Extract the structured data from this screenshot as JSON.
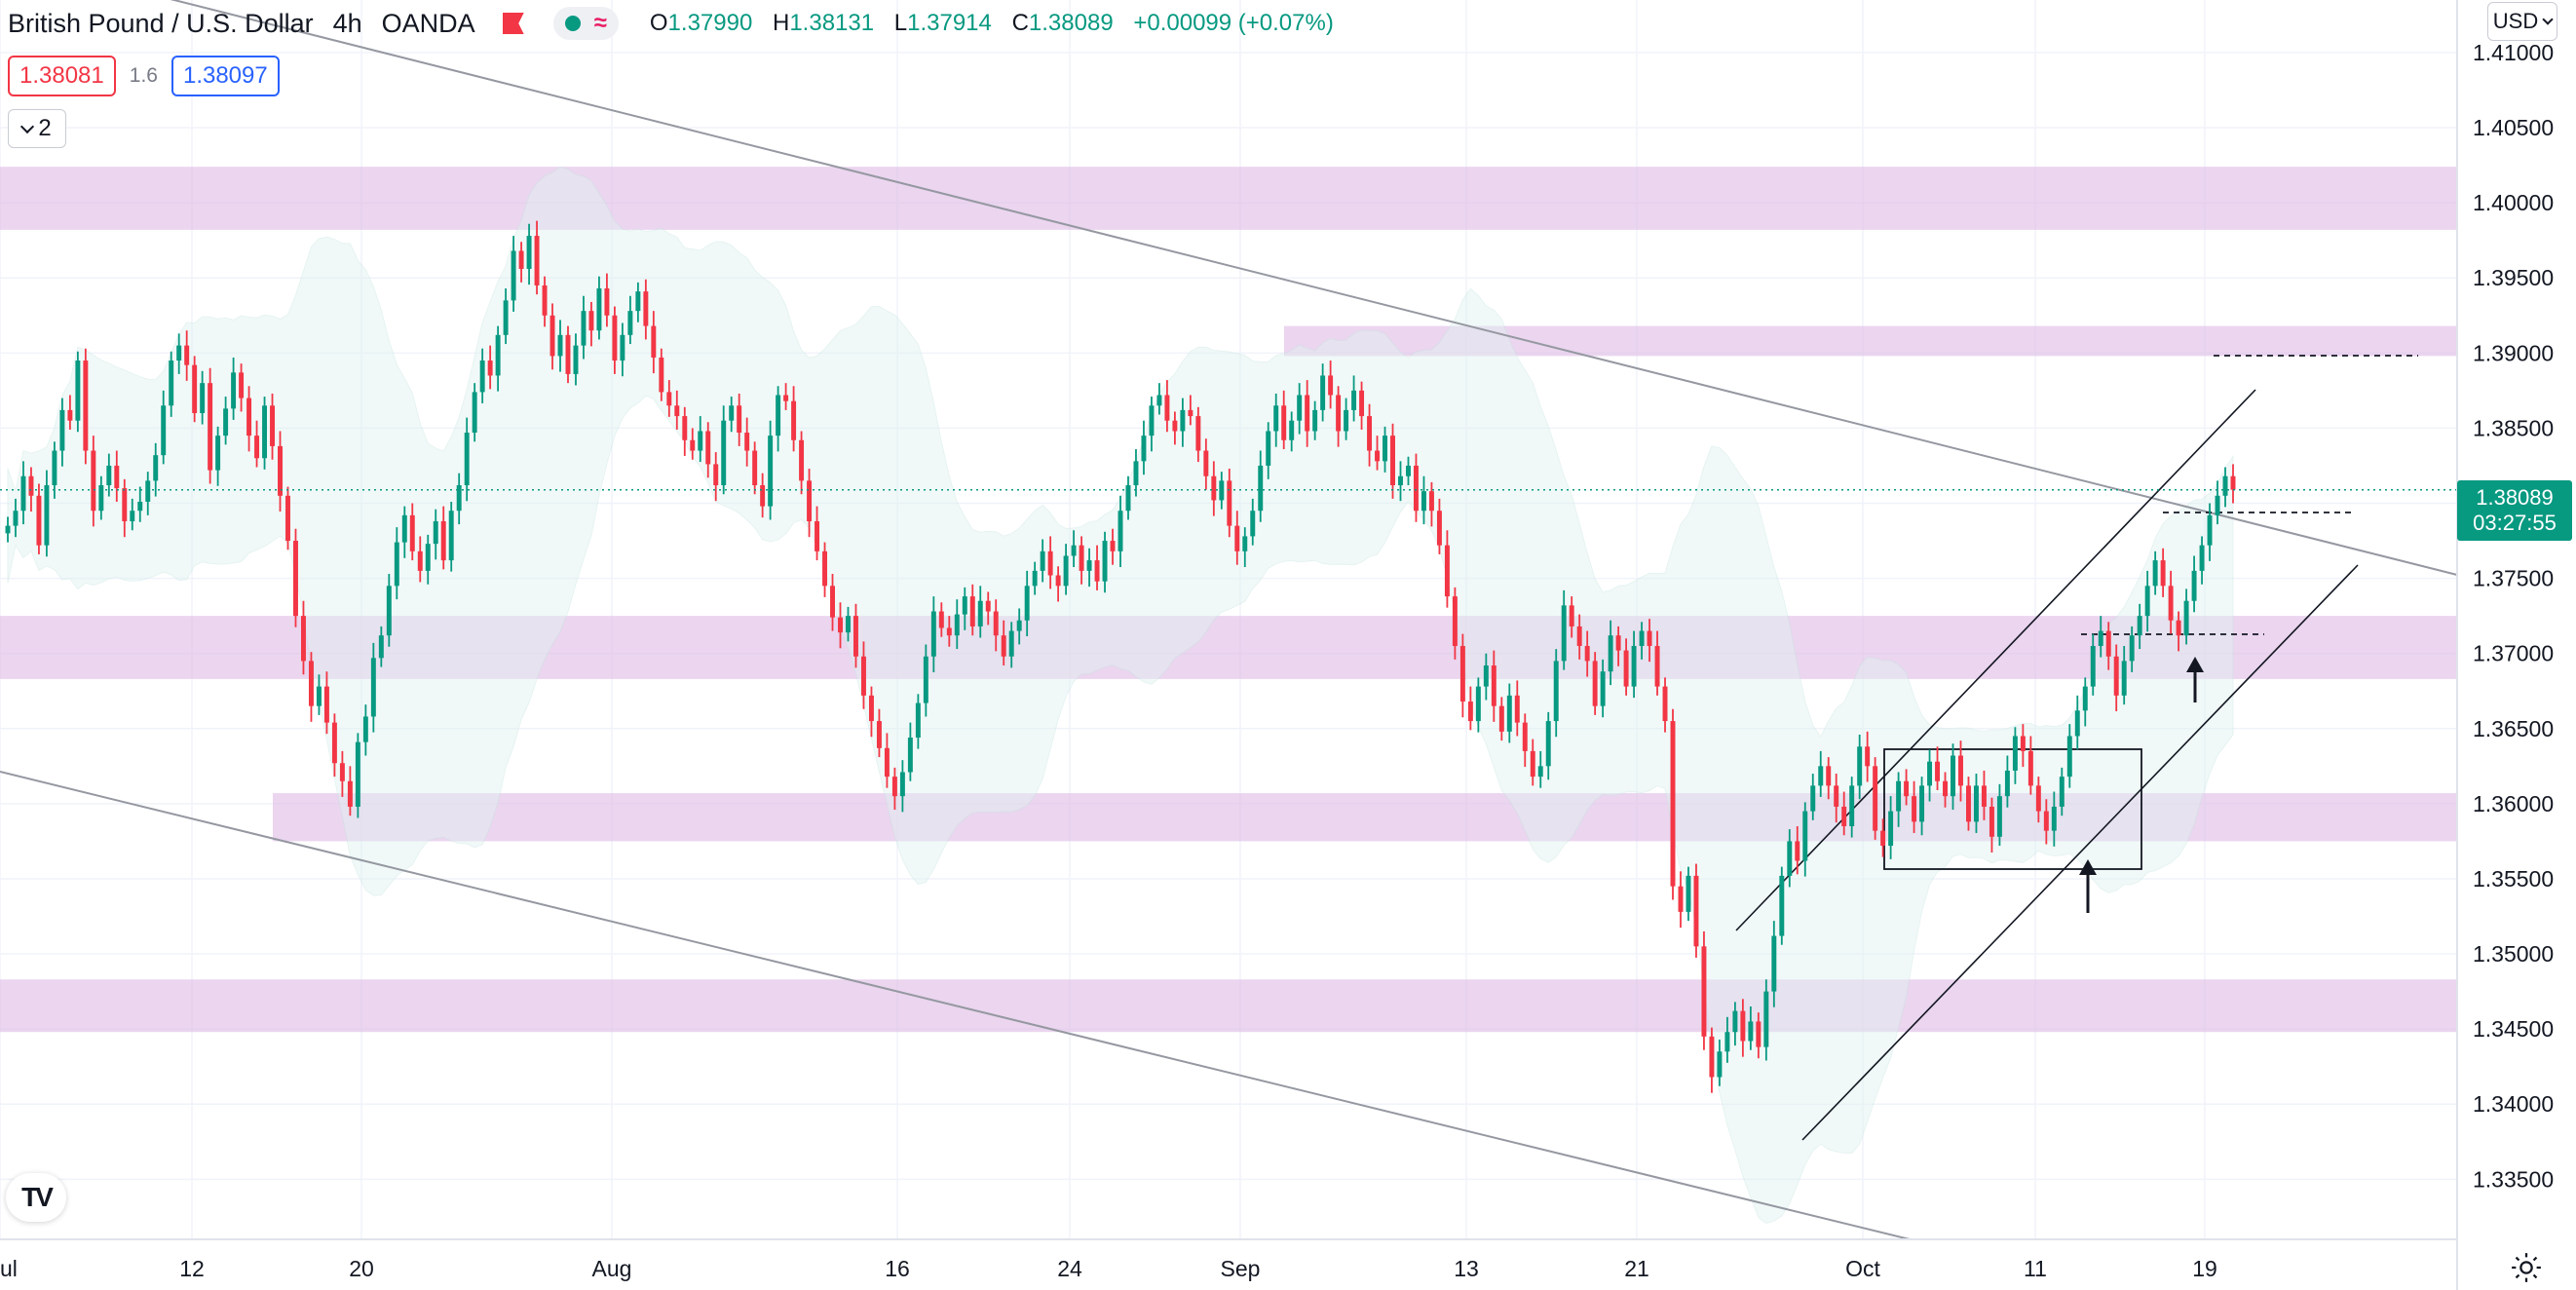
{
  "legend": {
    "symbol": "British Pound / U.S. Dollar",
    "interval": "4h",
    "broker": "OANDA",
    "open_label": "O",
    "open": "1.37990",
    "high_label": "H",
    "high": "1.38131",
    "low_label": "L",
    "low": "1.37914",
    "close_label": "C",
    "close": "1.38089",
    "change": "+0.00099 (+0.07%)",
    "icons": [
      "market-closed-flag-icon",
      "status-dot-icon",
      "indicator-waves-icon"
    ]
  },
  "quote": {
    "sell": "1.38081",
    "spread": "1.6",
    "buy": "1.38097"
  },
  "indicator_toggle": {
    "count": "2"
  },
  "currency": "USD",
  "last_price": {
    "price": "1.38089",
    "countdown": "03:27:55"
  },
  "colors": {
    "up": "#089981",
    "down": "#f23645",
    "zone_fill": "#e1bee7",
    "band_fill": "#e0f2f1",
    "trendline": "#9598a1",
    "grid": "#f0f3fa"
  },
  "chart_data": {
    "type": "candlestick",
    "title": "",
    "xlabel": "",
    "ylabel": "",
    "ylim": [
      1.331,
      1.4135
    ],
    "y_ticks": [
      "1.41000",
      "1.40500",
      "1.40000",
      "1.39500",
      "1.39000",
      "1.38500",
      "1.38000",
      "1.37500",
      "1.37000",
      "1.36500",
      "1.36000",
      "1.35500",
      "1.35000",
      "1.34500",
      "1.34000",
      "1.33500"
    ],
    "x_ticks": [
      "ul",
      "12",
      "20",
      "Aug",
      "16",
      "24",
      "Sep",
      "13",
      "21",
      "Oct",
      "11",
      "19"
    ],
    "grid": true,
    "series": [
      {
        "values": [
          1.3785,
          1.3795,
          1.3818,
          1.3805,
          1.3772,
          1.3812,
          1.3835,
          1.3862,
          1.3855,
          1.3895,
          1.3835,
          1.3795,
          1.3812,
          1.3825,
          1.381,
          1.3788,
          1.3795,
          1.3801,
          1.3815,
          1.3832,
          1.3865,
          1.3895,
          1.3905,
          1.3892,
          1.386,
          1.388,
          1.3822,
          1.3845,
          1.3863,
          1.3887,
          1.387,
          1.3845,
          1.383,
          1.3865,
          1.3838,
          1.3805,
          1.3775,
          1.3725,
          1.3695,
          1.3665,
          1.3678,
          1.3654,
          1.3627,
          1.3615,
          1.3598,
          1.3641,
          1.3658,
          1.3697,
          1.3712,
          1.3745,
          1.3774,
          1.3792,
          1.3768,
          1.3755,
          1.3773,
          1.3788,
          1.3762,
          1.3795,
          1.3812,
          1.3847,
          1.3874,
          1.3895,
          1.3885,
          1.3912,
          1.3935,
          1.3968,
          1.3956,
          1.3978,
          1.3945,
          1.3925,
          1.3898,
          1.3912,
          1.3886,
          1.3905,
          1.3928,
          1.3915,
          1.3943,
          1.3925,
          1.3895,
          1.3912,
          1.3928,
          1.3941,
          1.3918,
          1.3897,
          1.3874,
          1.3865,
          1.3858,
          1.3842,
          1.3835,
          1.3848,
          1.3826,
          1.3812,
          1.3855,
          1.3865,
          1.3847,
          1.3835,
          1.3812,
          1.3798,
          1.3845,
          1.3872,
          1.3868,
          1.3842,
          1.3815,
          1.3788,
          1.3768,
          1.3745,
          1.3724,
          1.3714,
          1.3725,
          1.3698,
          1.3672,
          1.3655,
          1.3637,
          1.3618,
          1.3605,
          1.3621,
          1.3644,
          1.3667,
          1.3698,
          1.3728,
          1.3717,
          1.3712,
          1.3726,
          1.3738,
          1.3718,
          1.3735,
          1.3728,
          1.3712,
          1.3698,
          1.3715,
          1.3722,
          1.3745,
          1.3755,
          1.3768,
          1.3752,
          1.3745,
          1.3765,
          1.3772,
          1.3755,
          1.3762,
          1.3748,
          1.3775,
          1.3768,
          1.3795,
          1.3812,
          1.3828,
          1.3845,
          1.3865,
          1.3872,
          1.3855,
          1.3848,
          1.3862,
          1.3858,
          1.3835,
          1.3818,
          1.3802,
          1.3815,
          1.3785,
          1.3768,
          1.3778,
          1.3795,
          1.3825,
          1.3848,
          1.3865,
          1.3842,
          1.3855,
          1.3872,
          1.3848,
          1.3862,
          1.3885,
          1.3872,
          1.3848,
          1.3862,
          1.3875,
          1.3858,
          1.3835,
          1.3828,
          1.3845,
          1.3812,
          1.3818,
          1.3825,
          1.3795,
          1.3808,
          1.3795,
          1.3772,
          1.3738,
          1.3705,
          1.3668,
          1.3655,
          1.3678,
          1.3692,
          1.3665,
          1.3648,
          1.3672,
          1.3654,
          1.3635,
          1.3618,
          1.3625,
          1.3655,
          1.3695,
          1.3732,
          1.3718,
          1.3705,
          1.3695,
          1.3665,
          1.3688,
          1.3712,
          1.3702,
          1.3678,
          1.3705,
          1.3715,
          1.3705,
          1.3678,
          1.3655,
          1.3545,
          1.3528,
          1.3552,
          1.3505,
          1.3445,
          1.3418,
          1.3435,
          1.3448,
          1.3462,
          1.3442,
          1.3455,
          1.3438,
          1.3475,
          1.3512,
          1.3552,
          1.3575,
          1.3562,
          1.3595,
          1.3612,
          1.3625,
          1.3612,
          1.3598,
          1.3585,
          1.3612,
          1.3638,
          1.3625,
          1.3582,
          1.3572,
          1.3595,
          1.3615,
          1.3605,
          1.3588,
          1.3612,
          1.3628,
          1.3615,
          1.3605,
          1.3632,
          1.3612,
          1.3588,
          1.3612,
          1.3598,
          1.3578,
          1.3605,
          1.3622,
          1.3645,
          1.3635,
          1.3612,
          1.3595,
          1.3582,
          1.3598,
          1.3618,
          1.3645,
          1.3662,
          1.3678,
          1.3705,
          1.3715,
          1.3698,
          1.3672,
          1.3695,
          1.3712,
          1.3725,
          1.3745,
          1.3762,
          1.3745,
          1.3722,
          1.3712,
          1.3735,
          1.3755,
          1.3772,
          1.3792,
          1.3805,
          1.3818,
          1.3809
        ],
        "opens": [
          1.3795,
          1.3785,
          1.3795,
          1.3818,
          1.3805,
          1.3772,
          1.3812,
          1.3835,
          1.3862,
          1.3855
        ]
      }
    ],
    "zones": [
      [
        1.3982,
        1.4024
      ],
      [
        1.3898,
        1.3918
      ],
      [
        1.3683,
        1.3725
      ],
      [
        1.3575,
        1.3607
      ],
      [
        1.3448,
        1.3483
      ]
    ],
    "last_price": 1.38089,
    "annotations": [
      "descending channel",
      "ascending channel",
      "consolidation box",
      "arrows"
    ]
  }
}
